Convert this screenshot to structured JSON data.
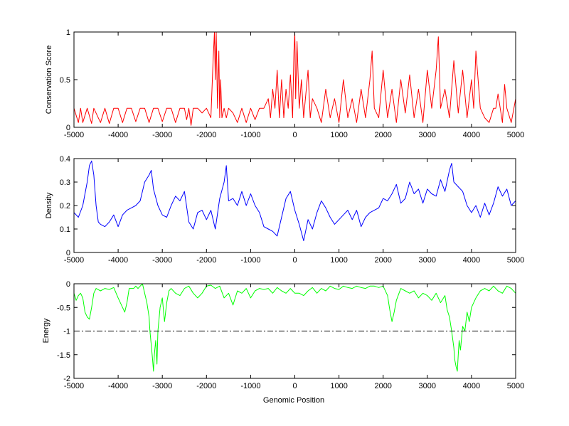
{
  "chart_data": [
    {
      "type": "line",
      "ylabel": "Conservation Score",
      "xlim": [
        -5000,
        5000
      ],
      "ylim": [
        0,
        1
      ],
      "xticks": [
        "-5000",
        "-4000",
        "-3000",
        "-2000",
        "-1000",
        "0",
        "1000",
        "2000",
        "3000",
        "4000",
        "5000"
      ],
      "yticks": [
        "0",
        "0.5",
        "1"
      ],
      "grid": false,
      "series": [
        {
          "color": "#ff0000",
          "x": [
            -5000,
            -4900,
            -4850,
            -4800,
            -4700,
            -4600,
            -4550,
            -4400,
            -4300,
            -4200,
            -4100,
            -4000,
            -3900,
            -3800,
            -3700,
            -3600,
            -3500,
            -3400,
            -3300,
            -3200,
            -3100,
            -3000,
            -2900,
            -2800,
            -2700,
            -2600,
            -2500,
            -2450,
            -2400,
            -2350,
            -2300,
            -2200,
            -2100,
            -2000,
            -1900,
            -1850,
            -1820,
            -1800,
            -1780,
            -1750,
            -1720,
            -1700,
            -1680,
            -1650,
            -1600,
            -1550,
            -1500,
            -1400,
            -1300,
            -1200,
            -1100,
            -1000,
            -900,
            -800,
            -700,
            -600,
            -550,
            -500,
            -450,
            -400,
            -350,
            -300,
            -250,
            -200,
            -150,
            -100,
            -50,
            -20,
            0,
            20,
            50,
            100,
            150,
            200,
            300,
            350,
            400,
            500,
            600,
            700,
            800,
            900,
            1000,
            1100,
            1200,
            1300,
            1400,
            1500,
            1600,
            1700,
            1750,
            1800,
            1900,
            2000,
            2100,
            2200,
            2300,
            2400,
            2500,
            2600,
            2700,
            2800,
            2900,
            3000,
            3100,
            3200,
            3250,
            3300,
            3400,
            3500,
            3600,
            3700,
            3800,
            3900,
            4000,
            4050,
            4100,
            4200,
            4300,
            4400,
            4500,
            4550,
            4600,
            4700,
            4750,
            4800,
            4900,
            5000
          ],
          "y": [
            0.2,
            0.05,
            0.2,
            0.05,
            0.2,
            0.04,
            0.2,
            0.05,
            0.2,
            0.04,
            0.2,
            0.2,
            0.05,
            0.2,
            0.2,
            0.06,
            0.2,
            0.2,
            0.05,
            0.2,
            0.2,
            0.06,
            0.2,
            0.2,
            0.05,
            0.2,
            0.2,
            0.08,
            0.2,
            0.02,
            0.2,
            0.2,
            0.15,
            0.2,
            0.1,
            0.7,
            1.0,
            0.5,
            1.0,
            0.2,
            0.8,
            0.1,
            0.5,
            0.1,
            0.2,
            0.1,
            0.2,
            0.15,
            0.05,
            0.2,
            0.05,
            0.2,
            0.08,
            0.2,
            0.2,
            0.3,
            0.1,
            0.4,
            0.2,
            0.6,
            0.1,
            0.5,
            0.1,
            0.4,
            0.2,
            0.55,
            0.1,
            0.8,
            1.0,
            0.3,
            0.9,
            0.2,
            0.5,
            0.1,
            0.6,
            0.1,
            0.3,
            0.2,
            0.05,
            0.4,
            0.1,
            0.3,
            0.05,
            0.5,
            0.1,
            0.3,
            0.05,
            0.4,
            0.1,
            0.5,
            0.8,
            0.2,
            0.1,
            0.6,
            0.1,
            0.4,
            0.05,
            0.5,
            0.15,
            0.55,
            0.1,
            0.4,
            0.05,
            0.6,
            0.2,
            0.6,
            0.95,
            0.2,
            0.4,
            0.1,
            0.7,
            0.15,
            0.6,
            0.1,
            0.5,
            0.2,
            0.8,
            0.2,
            0.1,
            0.05,
            0.2,
            0.2,
            0.35,
            0.05,
            0.45,
            0.2,
            0.05,
            0.3
          ]
        }
      ]
    },
    {
      "type": "line",
      "ylabel": "Density",
      "xlim": [
        -5000,
        5000
      ],
      "ylim": [
        0,
        0.4
      ],
      "xticks": [
        "-5000",
        "-4000",
        "-3000",
        "-2000",
        "-1000",
        "0",
        "1000",
        "2000",
        "3000",
        "4000",
        "5000"
      ],
      "yticks": [
        "0",
        "0.1",
        "0.2",
        "0.3",
        "0.4"
      ],
      "grid": false,
      "series": [
        {
          "color": "#0000ff",
          "x": [
            -5000,
            -4900,
            -4800,
            -4700,
            -4650,
            -4600,
            -4550,
            -4500,
            -4450,
            -4400,
            -4300,
            -4200,
            -4100,
            -4000,
            -3900,
            -3800,
            -3700,
            -3600,
            -3500,
            -3400,
            -3300,
            -3250,
            -3200,
            -3100,
            -3000,
            -2900,
            -2800,
            -2700,
            -2600,
            -2500,
            -2400,
            -2300,
            -2200,
            -2100,
            -2000,
            -1900,
            -1800,
            -1700,
            -1600,
            -1550,
            -1500,
            -1400,
            -1300,
            -1200,
            -1100,
            -1000,
            -900,
            -800,
            -700,
            -600,
            -500,
            -400,
            -300,
            -200,
            -100,
            0,
            100,
            200,
            300,
            400,
            500,
            600,
            700,
            800,
            900,
            1000,
            1100,
            1200,
            1300,
            1400,
            1500,
            1600,
            1700,
            1800,
            1900,
            2000,
            2100,
            2200,
            2300,
            2400,
            2500,
            2600,
            2700,
            2800,
            2900,
            3000,
            3100,
            3200,
            3300,
            3400,
            3500,
            3550,
            3600,
            3700,
            3800,
            3900,
            4000,
            4100,
            4200,
            4300,
            4400,
            4500,
            4600,
            4700,
            4800,
            4900,
            5000
          ],
          "y": [
            0.17,
            0.15,
            0.2,
            0.3,
            0.37,
            0.39,
            0.33,
            0.2,
            0.13,
            0.12,
            0.11,
            0.13,
            0.16,
            0.11,
            0.16,
            0.18,
            0.19,
            0.2,
            0.22,
            0.3,
            0.33,
            0.35,
            0.27,
            0.2,
            0.16,
            0.15,
            0.2,
            0.24,
            0.22,
            0.26,
            0.13,
            0.1,
            0.17,
            0.18,
            0.14,
            0.18,
            0.1,
            0.23,
            0.3,
            0.37,
            0.22,
            0.23,
            0.2,
            0.26,
            0.2,
            0.25,
            0.2,
            0.17,
            0.11,
            0.1,
            0.09,
            0.07,
            0.15,
            0.23,
            0.26,
            0.18,
            0.12,
            0.05,
            0.14,
            0.1,
            0.17,
            0.22,
            0.19,
            0.15,
            0.12,
            0.14,
            0.16,
            0.18,
            0.14,
            0.18,
            0.11,
            0.15,
            0.17,
            0.18,
            0.19,
            0.23,
            0.22,
            0.25,
            0.29,
            0.21,
            0.23,
            0.3,
            0.25,
            0.27,
            0.21,
            0.27,
            0.25,
            0.24,
            0.31,
            0.26,
            0.35,
            0.38,
            0.3,
            0.28,
            0.26,
            0.2,
            0.17,
            0.2,
            0.15,
            0.21,
            0.16,
            0.21,
            0.28,
            0.24,
            0.27,
            0.2,
            0.22
          ]
        }
      ]
    },
    {
      "type": "line",
      "ylabel": "Energy",
      "xlabel": "Genomic Position",
      "xlim": [
        -5000,
        5000
      ],
      "ylim": [
        -2,
        0
      ],
      "xticks": [
        "-5000",
        "-4000",
        "-3000",
        "-2000",
        "-1000",
        "0",
        "1000",
        "2000",
        "3000",
        "4000",
        "5000"
      ],
      "yticks": [
        "-2",
        "-1.5",
        "-1",
        "-0.5",
        "0"
      ],
      "grid": false,
      "reference_line": {
        "y": -1,
        "style": "dash-dot",
        "color": "#000000"
      },
      "series": [
        {
          "color": "#00ff00",
          "x": [
            -5000,
            -4950,
            -4900,
            -4850,
            -4800,
            -4750,
            -4700,
            -4650,
            -4600,
            -4550,
            -4500,
            -4400,
            -4300,
            -4200,
            -4100,
            -4000,
            -3900,
            -3850,
            -3800,
            -3750,
            -3700,
            -3650,
            -3600,
            -3550,
            -3500,
            -3450,
            -3400,
            -3350,
            -3300,
            -3280,
            -3250,
            -3220,
            -3200,
            -3180,
            -3150,
            -3120,
            -3100,
            -3050,
            -3000,
            -2950,
            -2900,
            -2850,
            -2800,
            -2700,
            -2600,
            -2500,
            -2400,
            -2300,
            -2200,
            -2100,
            -2000,
            -1900,
            -1800,
            -1700,
            -1600,
            -1500,
            -1400,
            -1300,
            -1200,
            -1100,
            -1000,
            -900,
            -800,
            -700,
            -600,
            -500,
            -400,
            -300,
            -200,
            -100,
            0,
            100,
            200,
            300,
            400,
            500,
            600,
            700,
            800,
            900,
            1000,
            1100,
            1200,
            1300,
            1400,
            1500,
            1600,
            1700,
            1800,
            1900,
            2000,
            2100,
            2150,
            2200,
            2250,
            2300,
            2400,
            2500,
            2600,
            2700,
            2800,
            2900,
            3000,
            3100,
            3200,
            3300,
            3400,
            3450,
            3500,
            3550,
            3600,
            3620,
            3650,
            3680,
            3700,
            3720,
            3750,
            3800,
            3850,
            3900,
            3950,
            4000,
            4100,
            4200,
            4300,
            4400,
            4500,
            4600,
            4700,
            4800,
            4900,
            5000
          ],
          "y": [
            -0.2,
            -0.35,
            -0.25,
            -0.2,
            -0.3,
            -0.6,
            -0.7,
            -0.75,
            -0.5,
            -0.2,
            -0.1,
            -0.15,
            -0.1,
            -0.12,
            -0.08,
            -0.3,
            -0.5,
            -0.6,
            -0.4,
            -0.1,
            -0.1,
            -0.1,
            -0.05,
            -0.1,
            -0.05,
            0,
            -0.2,
            -0.4,
            -0.7,
            -1.0,
            -1.3,
            -1.6,
            -1.85,
            -1.5,
            -1.2,
            -1.7,
            -1.0,
            -0.5,
            -0.3,
            -0.8,
            -0.4,
            -0.15,
            -0.1,
            -0.2,
            -0.25,
            -0.1,
            -0.05,
            -0.2,
            -0.3,
            -0.2,
            -0.05,
            -0.03,
            -0.1,
            -0.05,
            -0.3,
            -0.2,
            -0.45,
            -0.15,
            -0.2,
            -0.1,
            -0.3,
            -0.15,
            -0.1,
            -0.12,
            -0.1,
            -0.2,
            -0.08,
            -0.15,
            -0.2,
            -0.1,
            -0.2,
            -0.2,
            -0.25,
            -0.15,
            -0.08,
            -0.2,
            -0.1,
            -0.15,
            -0.05,
            -0.1,
            -0.12,
            -0.05,
            -0.08,
            -0.1,
            -0.05,
            -0.08,
            -0.1,
            -0.05,
            -0.05,
            -0.08,
            -0.05,
            -0.25,
            -0.55,
            -0.8,
            -0.6,
            -0.35,
            -0.1,
            -0.15,
            -0.2,
            -0.15,
            -0.3,
            -0.2,
            -0.25,
            -0.35,
            -0.2,
            -0.4,
            -0.25,
            -0.55,
            -0.7,
            -1.0,
            -1.35,
            -1.6,
            -1.75,
            -1.85,
            -1.5,
            -1.2,
            -1.4,
            -0.9,
            -1.0,
            -0.6,
            -0.8,
            -0.5,
            -0.3,
            -0.15,
            -0.1,
            -0.15,
            -0.05,
            -0.15,
            -0.2,
            -0.05,
            -0.1,
            -0.2
          ]
        }
      ]
    }
  ]
}
